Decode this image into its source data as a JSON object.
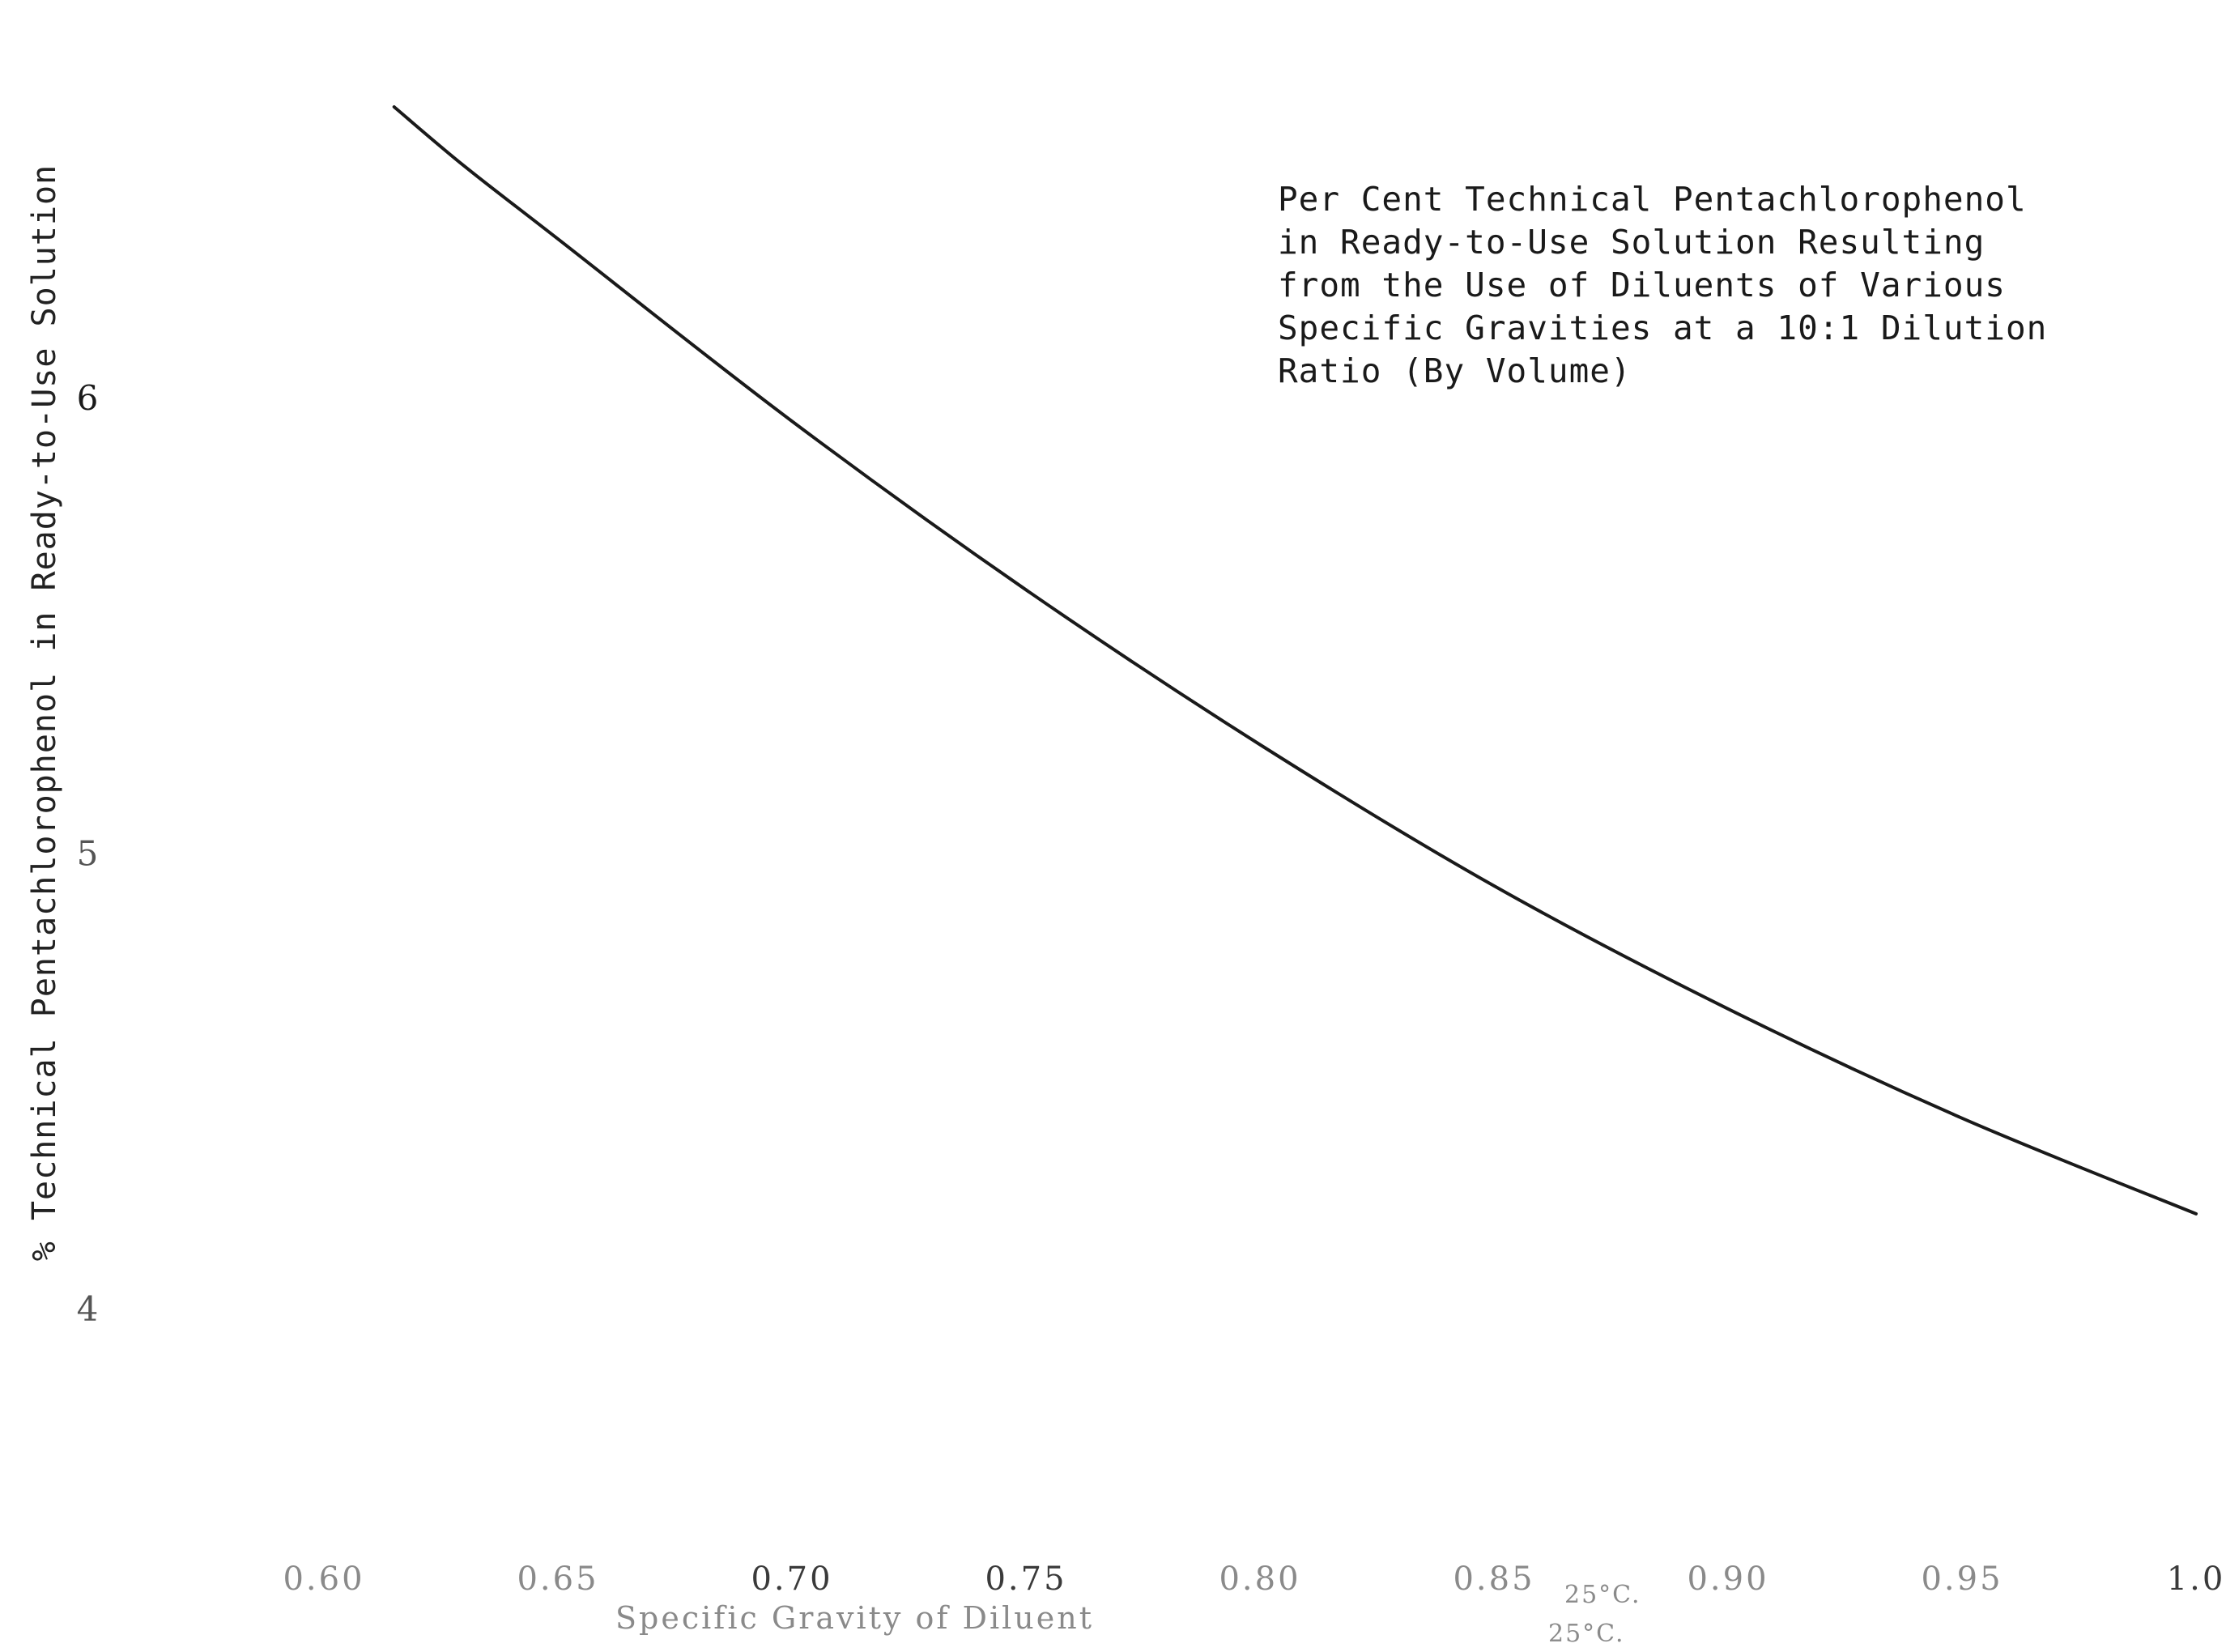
{
  "chart_data": {
    "type": "line",
    "title_lines": [
      "Per Cent Technical Pentachlorophenol",
      "in Ready-to-Use Solution Resulting",
      "from the Use of Diluents of Various",
      "Specific Gravities at a 10:1 Dilution",
      "Ratio (By Volume)"
    ],
    "xlabel": "Specific Gravity of Diluent",
    "x_unit_note": [
      "25°C.",
      "25°C."
    ],
    "ylabel": "% Technical Pentachlorophenol in Ready-to-Use Solution",
    "xlim": [
      0.6,
      1.0
    ],
    "ylim": [
      3.95,
      6.75
    ],
    "x_ticks": [
      0.6,
      0.65,
      0.7,
      0.75,
      0.8,
      0.85,
      0.9,
      0.95,
      1.0
    ],
    "x_tick_labels": [
      "0.60",
      "0.65",
      "0.70",
      "0.75",
      "0.80",
      "0.85",
      "0.90",
      "0.95",
      "1.0"
    ],
    "y_ticks": [
      4,
      5,
      6
    ],
    "y_tick_labels": [
      "4",
      "5",
      "6"
    ],
    "grid": false,
    "series": [
      {
        "color": "#1a1a1a",
        "x": [
          0.615,
          0.63,
          0.65,
          0.7,
          0.75,
          0.8,
          0.85,
          0.9,
          0.95,
          1.0
        ],
        "y": [
          6.64,
          6.51,
          6.35,
          5.95,
          5.58,
          5.24,
          4.93,
          4.66,
          4.42,
          4.21
        ]
      }
    ]
  }
}
